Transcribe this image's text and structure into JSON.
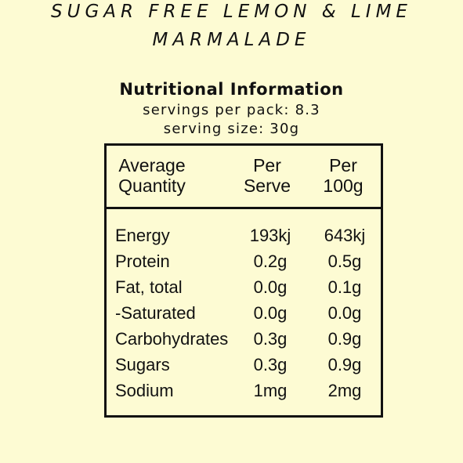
{
  "product": {
    "title_line1": "SUGAR FREE LEMON & LIME",
    "title_line2": "MARMALADE"
  },
  "nutrition": {
    "heading": "Nutritional Information",
    "servings_per_pack": "servings per pack: 8.3",
    "serving_size": "serving size: 30g",
    "columns": {
      "quantity_line1": "Average",
      "quantity_line2": "Quantity",
      "serve_line1": "Per",
      "serve_line2": "Serve",
      "per100_line1": "Per",
      "per100_line2": "100g"
    },
    "rows": [
      {
        "name": "Energy",
        "per_serve": "193kj",
        "per_100g": "643kj"
      },
      {
        "name": "Protein",
        "per_serve": "0.2g",
        "per_100g": "0.5g"
      },
      {
        "name": "Fat, total",
        "per_serve": "0.0g",
        "per_100g": "0.1g"
      },
      {
        "name": "-Saturated",
        "per_serve": "0.0g",
        "per_100g": "0.0g"
      },
      {
        "name": "Carbohydrates",
        "per_serve": "0.3g",
        "per_100g": "0.9g"
      },
      {
        "name": "Sugars",
        "per_serve": "0.3g",
        "per_100g": "0.9g"
      },
      {
        "name": "Sodium",
        "per_serve": "1mg",
        "per_100g": "2mg"
      }
    ]
  },
  "colors": {
    "background": "#fdfbd3",
    "text": "#111111"
  }
}
